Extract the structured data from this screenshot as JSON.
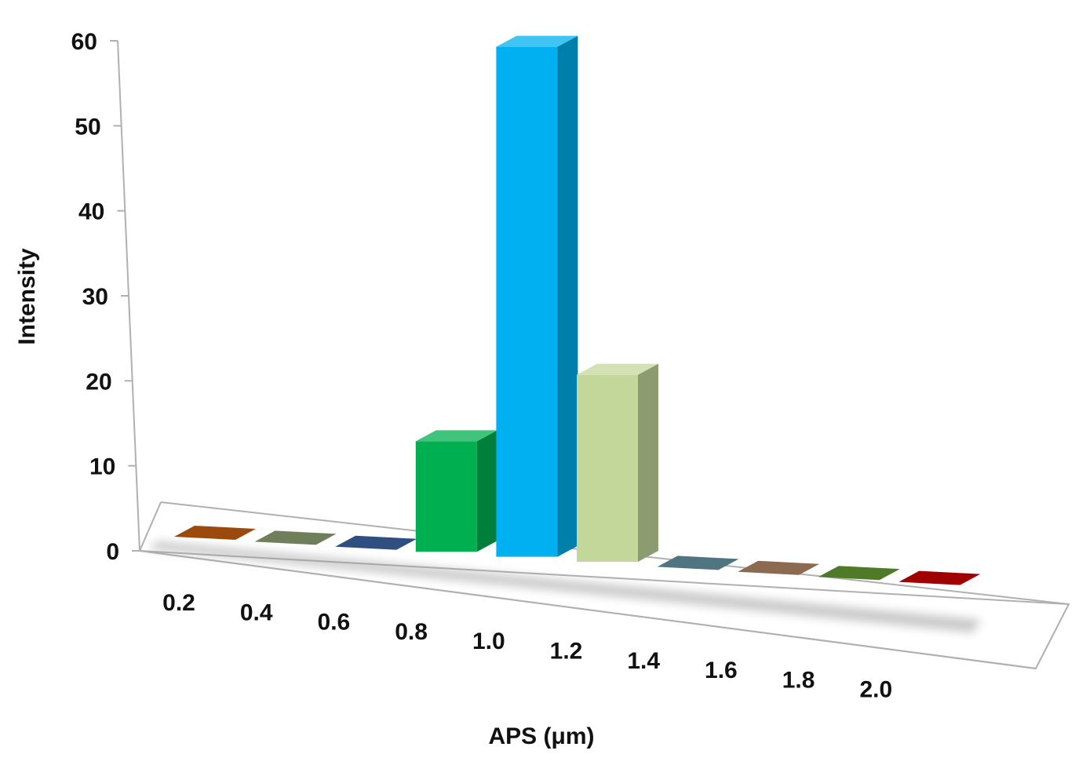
{
  "chart_data": {
    "type": "bar",
    "title": "",
    "xlabel": "APS (μm)",
    "ylabel": "Intensity",
    "ylim": [
      0,
      60
    ],
    "yticks": [
      "0",
      "10",
      "20",
      "30",
      "40",
      "50",
      "60"
    ],
    "categories": [
      "0.2",
      "0.4",
      "0.6",
      "0.8",
      "1.0",
      "1.2",
      "1.4",
      "1.6",
      "1.8",
      "2.0"
    ],
    "values": [
      0,
      0,
      0,
      13,
      60,
      22,
      0,
      0,
      0,
      0
    ],
    "bar_colors": [
      "#9b4a0c",
      "#6f7f5a",
      "#2f4f80",
      "#00b050",
      "#00b0f0",
      "#c4d79b",
      "#4f7580",
      "#8c6a50",
      "#4f7a28",
      "#a00000"
    ],
    "grid": false,
    "legend": "none",
    "style": "3d-column"
  }
}
